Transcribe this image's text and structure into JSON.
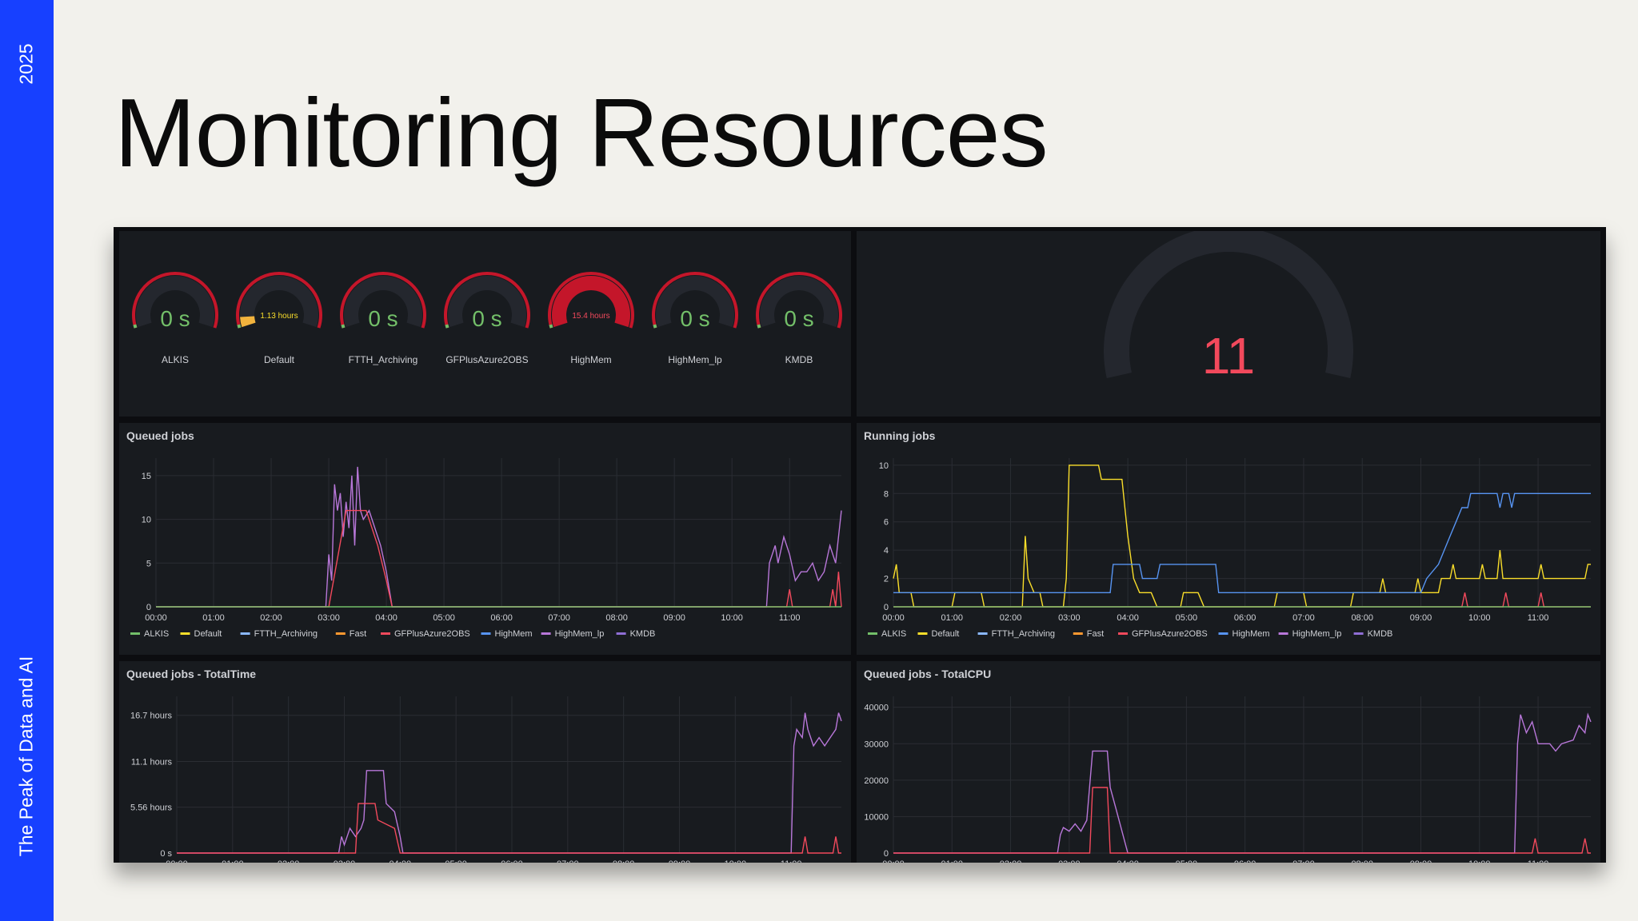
{
  "sidebar": {
    "year": "2025",
    "event": "The Peak of Data and AI",
    "color": "#1740ff"
  },
  "slide": {
    "title": "Monitoring Resources"
  },
  "gauges": [
    {
      "label": "ALKIS",
      "value": "0 s",
      "fill": 0,
      "value_color": "#73bf69"
    },
    {
      "label": "Default",
      "value": "1.13 hours",
      "fill": 0.07,
      "value_color": "#fade2a"
    },
    {
      "label": "FTTH_Archiving",
      "value": "0 s",
      "fill": 0,
      "value_color": "#73bf69"
    },
    {
      "label": "GFPlusAzure2OBS",
      "value": "0 s",
      "fill": 0,
      "value_color": "#73bf69"
    },
    {
      "label": "HighMem",
      "value": "15.4 hours",
      "fill": 1,
      "value_color": "#f2495c"
    },
    {
      "label": "HighMem_lp",
      "value": "0 s",
      "fill": 0,
      "value_color": "#73bf69"
    },
    {
      "label": "KMDB",
      "value": "0 s",
      "fill": 0,
      "value_color": "#73bf69"
    }
  ],
  "stat_gauge": {
    "value": "11",
    "color": "#f2495c"
  },
  "time_ticks": [
    "00:00",
    "01:00",
    "02:00",
    "03:00",
    "04:00",
    "05:00",
    "06:00",
    "07:00",
    "08:00",
    "09:00",
    "10:00",
    "11:00"
  ],
  "legend": [
    {
      "name": "ALKIS",
      "color": "#73bf69"
    },
    {
      "name": "Default",
      "color": "#fade2a"
    },
    {
      "name": "FTTH_Archiving",
      "color": "#8ab8ff"
    },
    {
      "name": "Fast",
      "color": "#ff9830"
    },
    {
      "name": "GFPlusAzure2OBS",
      "color": "#f2495c"
    },
    {
      "name": "HighMem",
      "color": "#5794f2"
    },
    {
      "name": "HighMem_lp",
      "color": "#b877d9"
    },
    {
      "name": "KMDB",
      "color": "#8f6ed5"
    }
  ],
  "chart_data": [
    {
      "type": "line",
      "title": "Queued jobs",
      "ylim": [
        0,
        17
      ],
      "yticks": [
        "0",
        "5",
        "10",
        "15"
      ],
      "ytick_values": [
        0,
        5,
        10,
        15
      ],
      "legend": true,
      "series": [
        {
          "name": "HighMem_lp",
          "color": "#b877d9",
          "points": [
            [
              0,
              0
            ],
            [
              2.95,
              0
            ],
            [
              3.0,
              6
            ],
            [
              3.05,
              3
            ],
            [
              3.1,
              14
            ],
            [
              3.15,
              11
            ],
            [
              3.2,
              13
            ],
            [
              3.25,
              8
            ],
            [
              3.3,
              12
            ],
            [
              3.35,
              9
            ],
            [
              3.4,
              15
            ],
            [
              3.45,
              7
            ],
            [
              3.5,
              16
            ],
            [
              3.55,
              11
            ],
            [
              3.6,
              10
            ],
            [
              3.7,
              11
            ],
            [
              3.8,
              9
            ],
            [
              3.9,
              7
            ],
            [
              4.0,
              4
            ],
            [
              4.05,
              2
            ],
            [
              4.1,
              0
            ],
            [
              10.6,
              0
            ],
            [
              10.65,
              5
            ],
            [
              10.75,
              7
            ],
            [
              10.8,
              5
            ],
            [
              10.9,
              8
            ],
            [
              11.0,
              6
            ],
            [
              11.1,
              3
            ],
            [
              11.2,
              4
            ],
            [
              11.3,
              4
            ],
            [
              11.4,
              5
            ],
            [
              11.5,
              3
            ],
            [
              11.6,
              4
            ],
            [
              11.7,
              7
            ],
            [
              11.8,
              5
            ],
            [
              11.9,
              11
            ]
          ]
        },
        {
          "name": "GFPlusAzure2OBS",
          "color": "#f2495c",
          "points": [
            [
              0,
              0
            ],
            [
              3.0,
              0
            ],
            [
              3.3,
              11
            ],
            [
              3.65,
              11
            ],
            [
              3.7,
              10
            ],
            [
              3.85,
              7
            ],
            [
              4.0,
              3
            ],
            [
              4.1,
              0
            ],
            [
              10.95,
              0
            ],
            [
              11.0,
              2
            ],
            [
              11.05,
              0
            ],
            [
              11.7,
              0
            ],
            [
              11.75,
              2
            ],
            [
              11.8,
              0
            ],
            [
              11.85,
              4
            ],
            [
              11.9,
              0
            ]
          ]
        },
        {
          "name": "ALKIS",
          "color": "#73bf69",
          "points": [
            [
              0,
              0
            ],
            [
              11.9,
              0
            ]
          ]
        }
      ]
    },
    {
      "type": "line",
      "title": "Running jobs",
      "ylim": [
        0,
        10.5
      ],
      "yticks": [
        "0",
        "2",
        "4",
        "6",
        "8",
        "10"
      ],
      "ytick_values": [
        0,
        2,
        4,
        6,
        8,
        10
      ],
      "legend": true,
      "series": [
        {
          "name": "Default",
          "color": "#fade2a",
          "points": [
            [
              0,
              2
            ],
            [
              0.05,
              3
            ],
            [
              0.1,
              1
            ],
            [
              0.3,
              1
            ],
            [
              0.35,
              0
            ],
            [
              1.0,
              0
            ],
            [
              1.05,
              1
            ],
            [
              1.5,
              1
            ],
            [
              1.55,
              0
            ],
            [
              2.2,
              0
            ],
            [
              2.25,
              5
            ],
            [
              2.3,
              2
            ],
            [
              2.4,
              1
            ],
            [
              2.5,
              1
            ],
            [
              2.55,
              0
            ],
            [
              2.9,
              0
            ],
            [
              2.95,
              2
            ],
            [
              3.0,
              10
            ],
            [
              3.5,
              10
            ],
            [
              3.55,
              9
            ],
            [
              3.9,
              9
            ],
            [
              4.0,
              5
            ],
            [
              4.1,
              2
            ],
            [
              4.2,
              1
            ],
            [
              4.4,
              1
            ],
            [
              4.5,
              0
            ],
            [
              4.9,
              0
            ],
            [
              4.95,
              1
            ],
            [
              5.2,
              1
            ],
            [
              5.3,
              0
            ],
            [
              6.5,
              0
            ],
            [
              6.55,
              1
            ],
            [
              7.0,
              1
            ],
            [
              7.05,
              0
            ],
            [
              7.8,
              0
            ],
            [
              7.85,
              1
            ],
            [
              8.3,
              1
            ],
            [
              8.35,
              2
            ],
            [
              8.4,
              1
            ],
            [
              8.9,
              1
            ],
            [
              8.95,
              2
            ],
            [
              9.0,
              1
            ],
            [
              9.3,
              1
            ],
            [
              9.35,
              2
            ],
            [
              9.5,
              2
            ],
            [
              9.55,
              3
            ],
            [
              9.6,
              2
            ],
            [
              10.0,
              2
            ],
            [
              10.05,
              3
            ],
            [
              10.1,
              2
            ],
            [
              10.3,
              2
            ],
            [
              10.35,
              4
            ],
            [
              10.4,
              2
            ],
            [
              10.9,
              2
            ],
            [
              11.0,
              2
            ],
            [
              11.05,
              3
            ],
            [
              11.1,
              2
            ],
            [
              11.8,
              2
            ],
            [
              11.85,
              3
            ],
            [
              11.9,
              3
            ]
          ]
        },
        {
          "name": "HighMem",
          "color": "#5794f2",
          "points": [
            [
              0,
              1
            ],
            [
              3.7,
              1
            ],
            [
              3.75,
              3
            ],
            [
              4.2,
              3
            ],
            [
              4.25,
              2
            ],
            [
              4.5,
              2
            ],
            [
              4.55,
              3
            ],
            [
              5.5,
              3
            ],
            [
              5.55,
              1
            ],
            [
              9.0,
              1
            ],
            [
              9.1,
              2
            ],
            [
              9.3,
              3
            ],
            [
              9.4,
              4
            ],
            [
              9.5,
              5
            ],
            [
              9.6,
              6
            ],
            [
              9.7,
              7
            ],
            [
              9.8,
              7
            ],
            [
              9.85,
              8
            ],
            [
              10.3,
              8
            ],
            [
              10.35,
              7
            ],
            [
              10.4,
              8
            ],
            [
              10.5,
              8
            ],
            [
              10.55,
              7
            ],
            [
              10.6,
              8
            ],
            [
              11.9,
              8
            ]
          ]
        },
        {
          "name": "GFPlusAzure2OBS",
          "color": "#f2495c",
          "points": [
            [
              0,
              0
            ],
            [
              9.7,
              0
            ],
            [
              9.75,
              1
            ],
            [
              9.8,
              0
            ],
            [
              10.4,
              0
            ],
            [
              10.45,
              1
            ],
            [
              10.5,
              0
            ],
            [
              11.0,
              0
            ],
            [
              11.05,
              1
            ],
            [
              11.1,
              0
            ],
            [
              11.9,
              0
            ]
          ]
        },
        {
          "name": "ALKIS",
          "color": "#73bf69",
          "points": [
            [
              0,
              0
            ],
            [
              11.9,
              0
            ]
          ]
        }
      ]
    },
    {
      "type": "line",
      "title": "Queued jobs - TotalTime",
      "ylim": [
        0,
        19
      ],
      "yticks": [
        "0 s",
        "5.56 hours",
        "11.1 hours",
        "16.7 hours"
      ],
      "ytick_values": [
        0,
        5.56,
        11.1,
        16.7
      ],
      "legend": false,
      "series": [
        {
          "name": "HighMem_lp",
          "color": "#b877d9",
          "points": [
            [
              0,
              0
            ],
            [
              2.9,
              0
            ],
            [
              2.95,
              2
            ],
            [
              3.0,
              1
            ],
            [
              3.1,
              3
            ],
            [
              3.2,
              2
            ],
            [
              3.3,
              3
            ],
            [
              3.35,
              4
            ],
            [
              3.4,
              10
            ],
            [
              3.7,
              10
            ],
            [
              3.75,
              6
            ],
            [
              3.9,
              5
            ],
            [
              4.0,
              2
            ],
            [
              4.05,
              0
            ],
            [
              11.0,
              0
            ],
            [
              11.05,
              13
            ],
            [
              11.1,
              15
            ],
            [
              11.2,
              14
            ],
            [
              11.25,
              17
            ],
            [
              11.3,
              15
            ],
            [
              11.4,
              13
            ],
            [
              11.5,
              14
            ],
            [
              11.6,
              13
            ],
            [
              11.7,
              14
            ],
            [
              11.8,
              15
            ],
            [
              11.85,
              17
            ],
            [
              11.9,
              16
            ]
          ]
        },
        {
          "name": "GFPlusAzure2OBS",
          "color": "#f2495c",
          "points": [
            [
              0,
              0
            ],
            [
              3.2,
              0
            ],
            [
              3.25,
              6
            ],
            [
              3.55,
              6
            ],
            [
              3.6,
              4
            ],
            [
              3.9,
              3
            ],
            [
              4.0,
              0
            ],
            [
              11.2,
              0
            ],
            [
              11.25,
              2
            ],
            [
              11.3,
              0
            ],
            [
              11.75,
              0
            ],
            [
              11.8,
              2
            ],
            [
              11.85,
              0
            ],
            [
              11.9,
              0
            ]
          ]
        }
      ]
    },
    {
      "type": "line",
      "title": "Queued jobs - TotalCPU",
      "ylim": [
        0,
        43000
      ],
      "yticks": [
        "0",
        "10000",
        "20000",
        "30000",
        "40000"
      ],
      "ytick_values": [
        0,
        10000,
        20000,
        30000,
        40000
      ],
      "legend": false,
      "series": [
        {
          "name": "HighMem_lp",
          "color": "#b877d9",
          "points": [
            [
              0,
              0
            ],
            [
              2.8,
              0
            ],
            [
              2.85,
              5000
            ],
            [
              2.9,
              7000
            ],
            [
              3.0,
              6000
            ],
            [
              3.1,
              8000
            ],
            [
              3.2,
              6000
            ],
            [
              3.3,
              9000
            ],
            [
              3.4,
              28000
            ],
            [
              3.65,
              28000
            ],
            [
              3.7,
              18000
            ],
            [
              3.8,
              12000
            ],
            [
              3.9,
              6000
            ],
            [
              4.0,
              0
            ],
            [
              10.6,
              0
            ],
            [
              10.65,
              30000
            ],
            [
              10.7,
              38000
            ],
            [
              10.8,
              33000
            ],
            [
              10.9,
              36000
            ],
            [
              11.0,
              30000
            ],
            [
              11.2,
              30000
            ],
            [
              11.3,
              28000
            ],
            [
              11.4,
              30000
            ],
            [
              11.6,
              31000
            ],
            [
              11.7,
              35000
            ],
            [
              11.8,
              33000
            ],
            [
              11.85,
              38000
            ],
            [
              11.9,
              36000
            ]
          ]
        },
        {
          "name": "GFPlusAzure2OBS",
          "color": "#f2495c",
          "points": [
            [
              0,
              0
            ],
            [
              3.35,
              0
            ],
            [
              3.4,
              18000
            ],
            [
              3.65,
              18000
            ],
            [
              3.7,
              0
            ],
            [
              10.9,
              0
            ],
            [
              10.95,
              4000
            ],
            [
              11.0,
              0
            ],
            [
              11.75,
              0
            ],
            [
              11.8,
              4000
            ],
            [
              11.85,
              0
            ],
            [
              11.9,
              0
            ]
          ]
        }
      ]
    }
  ]
}
